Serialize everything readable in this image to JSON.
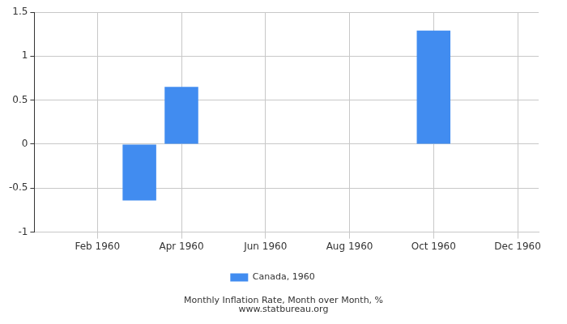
{
  "chart_data": {
    "type": "bar",
    "title": "Monthly Inflation Rate, Month over Month, %",
    "subtitle": "www.statbureau.org",
    "categories": [
      null,
      "Feb 1960",
      null,
      "Apr 1960",
      null,
      "Jun 1960",
      null,
      "Aug 1960",
      null,
      "Oct 1960",
      null,
      "Dec 1960"
    ],
    "series": [
      {
        "name": "Canada, 1960",
        "color": "#418cf0",
        "values": [
          0,
          0,
          -0.64,
          0.65,
          0,
          0,
          0,
          0,
          0,
          1.29,
          0,
          0
        ]
      }
    ],
    "ylim": [
      -1,
      1.5
    ],
    "yticks": [
      -1,
      -0.5,
      0,
      0.5,
      1,
      1.5
    ],
    "grid": true,
    "legend": "bottom"
  }
}
